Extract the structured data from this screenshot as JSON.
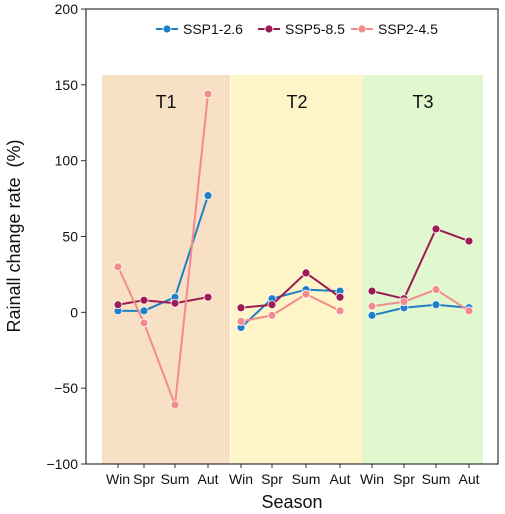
{
  "chart_data": {
    "type": "line",
    "xlabel": "Season",
    "ylabel": "Rainall change rate  (%)",
    "ylim": [
      -100,
      200
    ],
    "yticks": [
      -100,
      -50,
      0,
      50,
      100,
      150,
      200
    ],
    "legend_position": "top-right",
    "panels": [
      {
        "label": "T1",
        "color": "#f8e0c4",
        "categories": [
          "Win",
          "Spr",
          "Sum",
          "Aut"
        ]
      },
      {
        "label": "T2",
        "color": "#fdf4c8",
        "categories": [
          "Win",
          "Spr",
          "Sum",
          "Aut"
        ]
      },
      {
        "label": "T3",
        "color": "#e1f7cd",
        "categories": [
          "Win",
          "Spr",
          "Sum",
          "Aut"
        ]
      }
    ],
    "series": [
      {
        "name": "SSP1-2.6",
        "color": "#1f7fc7",
        "values": [
          [
            1,
            1,
            10,
            77
          ],
          [
            -10,
            9,
            15,
            14
          ],
          [
            -2,
            3,
            5,
            3
          ]
        ]
      },
      {
        "name": "SSP5-8.5",
        "color": "#9b1b52",
        "values": [
          [
            5,
            8,
            6,
            10
          ],
          [
            3,
            5,
            26,
            10
          ],
          [
            14,
            9,
            55,
            47
          ]
        ]
      },
      {
        "name": "SSP2-4.5",
        "color": "#f28b8b",
        "values": [
          [
            30,
            -7,
            -61,
            144
          ],
          [
            -6,
            -2,
            12,
            1
          ],
          [
            4,
            7,
            15,
            1
          ]
        ]
      }
    ]
  }
}
